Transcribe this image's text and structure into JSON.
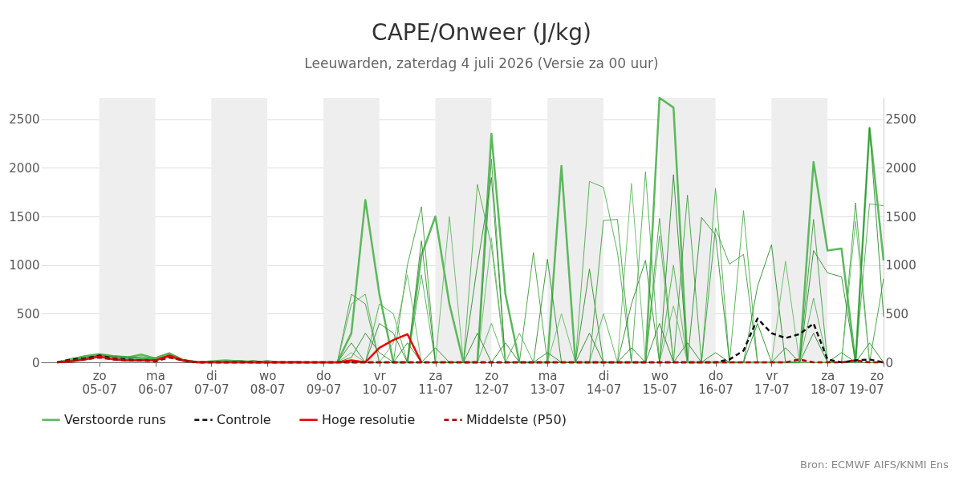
{
  "chart_data": {
    "type": "line",
    "title": "CAPE/Onweer (J/kg)",
    "subtitle": "Leeuwarden, zaterdag  4 juli 2026 (Versie za 00 uur)",
    "annotations": [
      "Bron: ECMWF AIFS/KNMI Ens"
    ],
    "x": [
      "2026-07-04T06:00",
      "2026-07-04T12:00",
      "2026-07-04T18:00",
      "2026-07-05T00:00",
      "2026-07-05T06:00",
      "2026-07-05T12:00",
      "2026-07-05T18:00",
      "2026-07-06T00:00",
      "2026-07-06T06:00",
      "2026-07-06T12:00",
      "2026-07-06T18:00",
      "2026-07-07T00:00",
      "2026-07-07T06:00",
      "2026-07-07T12:00",
      "2026-07-07T18:00",
      "2026-07-08T00:00",
      "2026-07-08T06:00",
      "2026-07-08T12:00",
      "2026-07-08T18:00",
      "2026-07-09T00:00",
      "2026-07-09T06:00",
      "2026-07-09T12:00",
      "2026-07-09T18:00",
      "2026-07-10T00:00",
      "2026-07-10T06:00",
      "2026-07-10T12:00",
      "2026-07-10T18:00",
      "2026-07-11T00:00",
      "2026-07-11T06:00",
      "2026-07-11T12:00",
      "2026-07-11T18:00",
      "2026-07-12T00:00",
      "2026-07-12T06:00",
      "2026-07-12T12:00",
      "2026-07-12T18:00",
      "2026-07-13T00:00",
      "2026-07-13T06:00",
      "2026-07-13T12:00",
      "2026-07-13T18:00",
      "2026-07-14T00:00",
      "2026-07-14T06:00",
      "2026-07-14T12:00",
      "2026-07-14T18:00",
      "2026-07-15T00:00",
      "2026-07-15T06:00",
      "2026-07-15T12:00",
      "2026-07-15T18:00",
      "2026-07-16T00:00",
      "2026-07-16T06:00",
      "2026-07-16T12:00",
      "2026-07-16T18:00",
      "2026-07-17T00:00",
      "2026-07-17T06:00",
      "2026-07-17T12:00",
      "2026-07-17T18:00",
      "2026-07-18T00:00",
      "2026-07-18T06:00",
      "2026-07-18T12:00",
      "2026-07-18T18:00",
      "2026-07-19T00:00"
    ],
    "xlim": [
      "2026-07-03T23:00",
      "2026-07-19T00:00"
    ],
    "xticks": [
      {
        "value": "2026-07-05",
        "label": "zo\n05-07"
      },
      {
        "value": "2026-07-06",
        "label": "ma\n06-07"
      },
      {
        "value": "2026-07-07",
        "label": "di\n07-07"
      },
      {
        "value": "2026-07-08",
        "label": "wo\n08-07"
      },
      {
        "value": "2026-07-09",
        "label": "do\n09-07"
      },
      {
        "value": "2026-07-10",
        "label": "vr\n10-07"
      },
      {
        "value": "2026-07-11",
        "label": "za\n11-07"
      },
      {
        "value": "2026-07-12",
        "label": "zo\n12-07"
      },
      {
        "value": "2026-07-13",
        "label": "ma\n13-07"
      },
      {
        "value": "2026-07-14",
        "label": "di\n14-07"
      },
      {
        "value": "2026-07-15",
        "label": "wo\n15-07"
      },
      {
        "value": "2026-07-16",
        "label": "do\n16-07"
      },
      {
        "value": "2026-07-17",
        "label": "vr\n17-07"
      },
      {
        "value": "2026-07-18",
        "label": "za\n18-07"
      },
      {
        "value": "2026-07-19",
        "label": "zo\n19-07"
      }
    ],
    "ylim": [
      0,
      2720
    ],
    "yticks": [
      0,
      500,
      1000,
      1500,
      2000,
      2500
    ],
    "y2lim": [
      0,
      2720
    ],
    "y2ticks": [
      0,
      500,
      1000,
      1500,
      2000,
      2500
    ],
    "grid": "y",
    "legend": "bottom",
    "bands": [
      {
        "axis": "x",
        "from": "2026-07-05",
        "to": "2026-07-06",
        "color": "#eeeeee"
      },
      {
        "axis": "x",
        "from": "2026-07-07",
        "to": "2026-07-08",
        "color": "#eeeeee"
      },
      {
        "axis": "x",
        "from": "2026-07-09",
        "to": "2026-07-10",
        "color": "#eeeeee"
      },
      {
        "axis": "x",
        "from": "2026-07-11",
        "to": "2026-07-12",
        "color": "#eeeeee"
      },
      {
        "axis": "x",
        "from": "2026-07-13",
        "to": "2026-07-14",
        "color": "#eeeeee"
      },
      {
        "axis": "x",
        "from": "2026-07-15",
        "to": "2026-07-16",
        "color": "#eeeeee"
      },
      {
        "axis": "x",
        "from": "2026-07-17",
        "to": "2026-07-18",
        "color": "#eeeeee"
      }
    ],
    "series": [
      {
        "name": "Verstoorde runs",
        "color": "#5cb85c",
        "values": [
          0,
          30,
          60,
          80,
          60,
          50,
          80,
          40,
          90,
          20,
          0,
          10,
          20,
          10,
          0,
          0,
          0,
          0,
          0,
          0,
          0,
          300,
          1670,
          700,
          0,
          0,
          1100,
          1500,
          600,
          0,
          0,
          2350,
          700,
          0,
          0,
          0,
          2020,
          0,
          0,
          0,
          0,
          0,
          0,
          2720,
          2620,
          0,
          0,
          0,
          0,
          0,
          0,
          0,
          0,
          0,
          2060,
          1150,
          1170,
          0,
          2410,
          1050
        ]
      },
      {
        "color": "#4cae4c",
        "values": [
          0,
          20,
          50,
          60,
          50,
          40,
          60,
          30,
          70,
          20,
          0,
          0,
          10,
          20,
          10,
          0,
          10,
          0,
          0,
          0,
          0,
          0,
          0,
          600,
          500,
          0,
          900,
          0,
          0,
          0,
          1830,
          1200,
          0,
          0,
          0,
          0,
          0,
          0,
          1860,
          1800,
          1130,
          0,
          1960,
          0,
          1000,
          0,
          0,
          1790,
          0,
          1560,
          0,
          0,
          0,
          0,
          0,
          0,
          0,
          0,
          1630,
          1610
        ]
      },
      {
        "color": "#3d9e3d",
        "values": [
          0,
          40,
          70,
          90,
          70,
          60,
          50,
          50,
          100,
          30,
          10,
          0,
          0,
          20,
          0,
          20,
          0,
          0,
          0,
          0,
          0,
          700,
          600,
          0,
          0,
          1000,
          1600,
          0,
          0,
          0,
          0,
          2090,
          0,
          0,
          1130,
          0,
          0,
          0,
          0,
          1460,
          1470,
          0,
          0,
          1480,
          0,
          1720,
          0,
          1380,
          1010,
          1110,
          0,
          0,
          0,
          0,
          1470,
          0,
          0,
          1640,
          0,
          860
        ]
      },
      {
        "color": "#2e8b2e",
        "values": [
          0,
          10,
          40,
          50,
          40,
          30,
          30,
          20,
          60,
          10,
          0,
          10,
          0,
          0,
          20,
          0,
          0,
          10,
          0,
          0,
          0,
          200,
          0,
          400,
          300,
          0,
          1250,
          0,
          0,
          0,
          1000,
          1900,
          0,
          0,
          0,
          1060,
          0,
          0,
          960,
          0,
          0,
          600,
          1050,
          0,
          1930,
          0,
          1490,
          1310,
          0,
          0,
          780,
          1210,
          0,
          0,
          1150,
          920,
          880,
          0,
          2410,
          470
        ]
      },
      {
        "color": "#66bb66",
        "values": [
          0,
          30,
          40,
          70,
          50,
          40,
          40,
          30,
          80,
          20,
          0,
          0,
          0,
          0,
          0,
          0,
          0,
          0,
          0,
          0,
          0,
          100,
          0,
          0,
          200,
          900,
          0,
          0,
          1500,
          0,
          0,
          1280,
          0,
          0,
          0,
          0,
          500,
          0,
          0,
          0,
          0,
          1840,
          0,
          0,
          580,
          0,
          0,
          0,
          0,
          0,
          0,
          0,
          1040,
          0,
          0,
          0,
          0,
          1450,
          0,
          0
        ]
      },
      {
        "color": "#55b055",
        "values": [
          0,
          20,
          30,
          60,
          40,
          30,
          30,
          20,
          50,
          10,
          0,
          0,
          0,
          0,
          0,
          0,
          0,
          0,
          0,
          0,
          0,
          600,
          700,
          0,
          0,
          0,
          0,
          0,
          0,
          0,
          0,
          400,
          0,
          300,
          0,
          0,
          0,
          0,
          0,
          500,
          0,
          0,
          0,
          1300,
          0,
          0,
          0,
          0,
          0,
          0,
          0,
          0,
          0,
          0,
          660,
          0,
          0,
          0,
          0,
          0
        ]
      },
      {
        "color": "#228b22",
        "values": [
          0,
          20,
          50,
          70,
          60,
          50,
          40,
          30,
          70,
          20,
          0,
          0,
          0,
          0,
          0,
          0,
          0,
          0,
          0,
          0,
          0,
          50,
          300,
          100,
          0,
          200,
          0,
          150,
          0,
          0,
          300,
          0,
          200,
          0,
          0,
          100,
          0,
          0,
          300,
          0,
          0,
          150,
          0,
          400,
          0,
          200,
          0,
          100,
          0,
          0,
          400,
          0,
          150,
          0,
          300,
          0,
          100,
          0,
          200,
          0
        ]
      },
      {
        "name": "Controle",
        "color": "#111111",
        "line_style": "dashed",
        "values": [
          0,
          30,
          40,
          70,
          40,
          30,
          20,
          20,
          60,
          20,
          0,
          0,
          0,
          0,
          0,
          0,
          0,
          0,
          0,
          0,
          0,
          0,
          0,
          0,
          0,
          0,
          0,
          0,
          0,
          0,
          0,
          0,
          0,
          0,
          0,
          0,
          0,
          0,
          0,
          0,
          0,
          0,
          0,
          0,
          0,
          0,
          0,
          0,
          30,
          120,
          450,
          300,
          250,
          290,
          400,
          30,
          0,
          20,
          30,
          0
        ]
      },
      {
        "name": "Hoge resolutie",
        "color": "#ee0000",
        "line_style": "solid",
        "values": [
          0,
          10,
          30,
          60,
          30,
          20,
          20,
          20,
          70,
          20,
          0,
          0,
          0,
          0,
          0,
          0,
          0,
          0,
          0,
          0,
          0,
          20,
          0,
          150,
          230,
          290,
          0,
          null,
          null,
          null,
          null,
          null,
          null,
          null,
          null,
          null,
          null,
          null,
          null,
          null,
          null,
          null,
          null,
          null,
          null,
          null,
          null,
          null,
          null,
          null,
          null,
          null,
          null,
          null,
          null,
          null,
          null,
          null,
          null,
          null
        ]
      },
      {
        "name": "Middelste (P50)",
        "color": "#aa0000",
        "line_style": "dashed",
        "values": [
          0,
          20,
          30,
          50,
          30,
          20,
          20,
          10,
          50,
          20,
          0,
          0,
          0,
          0,
          0,
          0,
          0,
          0,
          0,
          0,
          0,
          0,
          0,
          0,
          0,
          0,
          0,
          0,
          0,
          0,
          0,
          0,
          0,
          0,
          0,
          0,
          0,
          0,
          0,
          0,
          0,
          0,
          0,
          0,
          0,
          0,
          0,
          0,
          0,
          0,
          0,
          0,
          0,
          30,
          0,
          0,
          0,
          20,
          0,
          0
        ]
      }
    ]
  }
}
